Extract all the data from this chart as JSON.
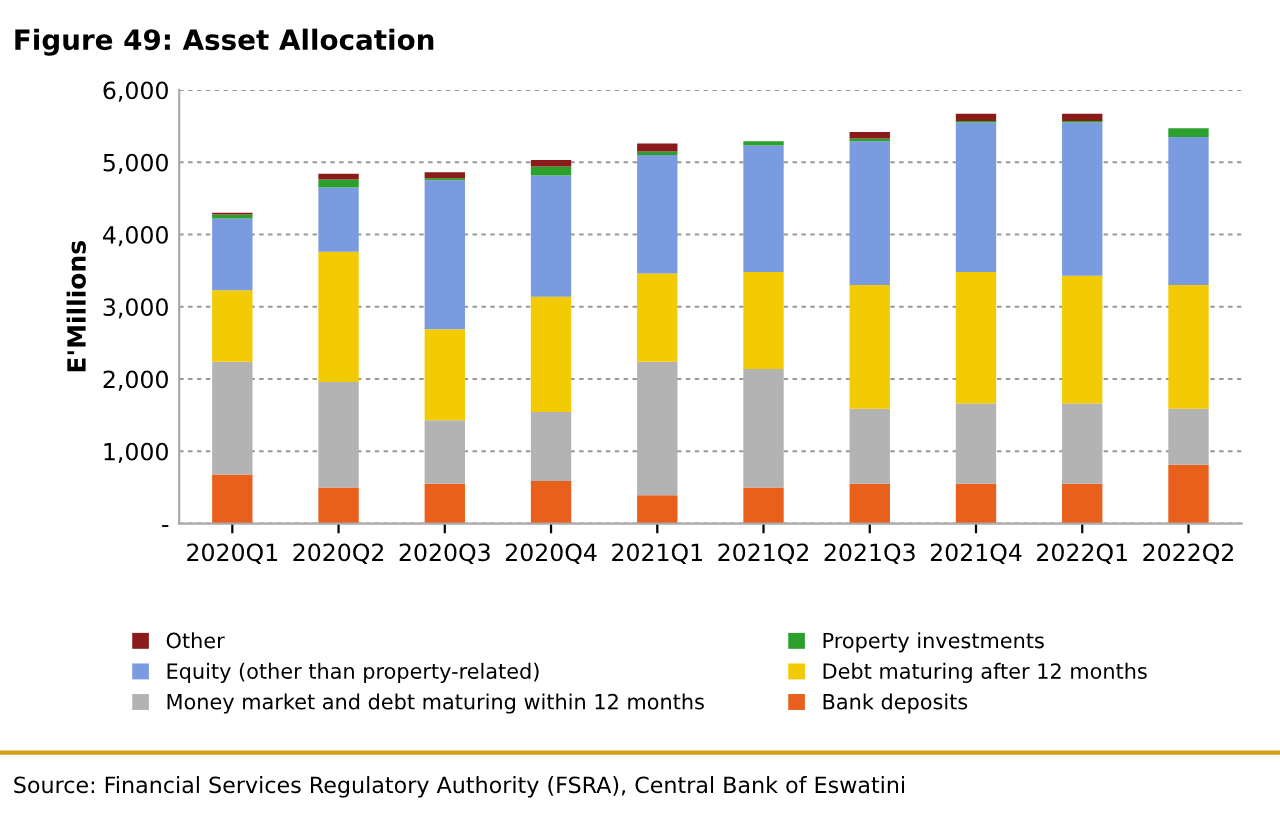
{
  "chart_data": {
    "type": "bar",
    "stacked": true,
    "title": "Figure 49: Asset Allocation",
    "ylabel": "E'Millions",
    "categories": [
      "2020Q1",
      "2020Q2",
      "2020Q3",
      "2020Q4",
      "2021Q1",
      "2021Q2",
      "2021Q3",
      "2021Q4",
      "2022Q1",
      "2022Q2"
    ],
    "series": [
      {
        "name": "Bank deposits",
        "color": "#e8601c",
        "values": [
          680,
          500,
          550,
          590,
          390,
          500,
          550,
          550,
          550,
          815
        ]
      },
      {
        "name": "Money market and debt maturing within 12 months",
        "color": "#b3b3b3",
        "values": [
          1560,
          1460,
          880,
          955,
          1850,
          1640,
          1040,
          1110,
          1110,
          775
        ]
      },
      {
        "name": "Debt maturing after 12 months",
        "color": "#f2cb05",
        "values": [
          990,
          1800,
          1260,
          1595,
          1220,
          1340,
          1710,
          1820,
          1770,
          1710
        ]
      },
      {
        "name": "Equity (other than property-related)",
        "color": "#7b9be0",
        "values": [
          990,
          890,
          2060,
          1675,
          1640,
          1750,
          1990,
          2070,
          2120,
          2050
        ]
      },
      {
        "name": "Property investments",
        "color": "#2ca02c",
        "values": [
          55,
          110,
          30,
          125,
          50,
          60,
          40,
          20,
          20,
          120
        ]
      },
      {
        "name": "Other",
        "color": "#8b1a1a",
        "values": [
          25,
          80,
          80,
          90,
          110,
          0,
          90,
          100,
          100,
          0
        ]
      }
    ],
    "ylim": [
      0,
      6000
    ],
    "yticks": [
      {
        "value": 0,
        "label": "-"
      },
      {
        "value": 1000,
        "label": "1,000"
      },
      {
        "value": 2000,
        "label": "2,000"
      },
      {
        "value": 3000,
        "label": "3,000"
      },
      {
        "value": 4000,
        "label": "4,000"
      },
      {
        "value": 5000,
        "label": "5,000"
      },
      {
        "value": 6000,
        "label": "6,000"
      }
    ],
    "grid": "y",
    "legend": "bottom",
    "annotations": [
      "Source: Financial Services Regulatory Authority (FSRA), Central Bank of Eswatini"
    ]
  }
}
